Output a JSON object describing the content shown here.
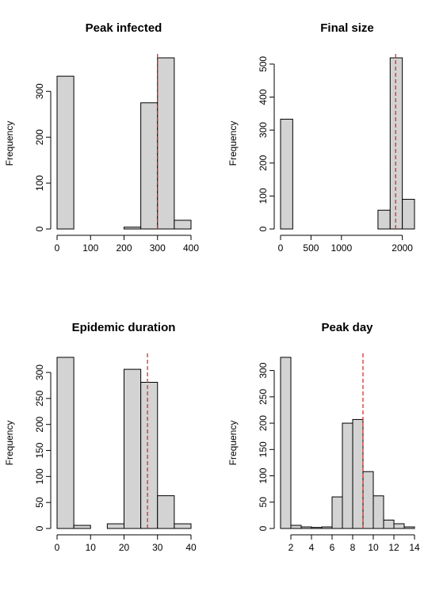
{
  "colors": {
    "bar_fill": "#d3d3d3",
    "bar_stroke": "#000000",
    "reference_line": "#d62020",
    "background": "#ffffff"
  },
  "chart_data": [
    {
      "type": "bar",
      "title": "Peak infected",
      "ylabel": "Frequency",
      "bins": [
        [
          0,
          50
        ],
        [
          50,
          100
        ],
        [
          100,
          150
        ],
        [
          150,
          200
        ],
        [
          200,
          250
        ],
        [
          250,
          300
        ],
        [
          300,
          350
        ],
        [
          350,
          400
        ]
      ],
      "values": [
        333,
        0,
        0,
        0,
        4,
        275,
        373,
        19
      ],
      "xlim": [
        0,
        400
      ],
      "ylim": [
        0,
        373
      ],
      "xticks": [
        0,
        100,
        200,
        300,
        400
      ],
      "xtick_labels": [
        "0",
        "100",
        "200",
        "300",
        "400"
      ],
      "yticks": [
        0,
        100,
        200,
        300
      ],
      "ytick_labels": [
        "0",
        "100",
        "200",
        "300"
      ],
      "reference_line_x": 300
    },
    {
      "type": "bar",
      "title": "Final size",
      "ylabel": "Frequency",
      "bins": [
        [
          0,
          200
        ],
        [
          200,
          400
        ],
        [
          400,
          600
        ],
        [
          600,
          800
        ],
        [
          800,
          1000
        ],
        [
          1000,
          1200
        ],
        [
          1200,
          1400
        ],
        [
          1400,
          1600
        ],
        [
          1600,
          1800
        ],
        [
          1800,
          2000
        ],
        [
          2000,
          2200
        ]
      ],
      "values": [
        333,
        0,
        0,
        0,
        0,
        0,
        0,
        0,
        57,
        519,
        90
      ],
      "xlim": [
        0,
        2200
      ],
      "ylim": [
        0,
        519
      ],
      "xticks": [
        0,
        500,
        1000,
        2000
      ],
      "xtick_labels": [
        "0",
        "500",
        "1000",
        "2000"
      ],
      "yticks": [
        0,
        100,
        200,
        300,
        400,
        500
      ],
      "ytick_labels": [
        "0",
        "100",
        "200",
        "300",
        "400",
        "500"
      ],
      "reference_line_x": 1890
    },
    {
      "type": "bar",
      "title": "Epidemic duration",
      "ylabel": "Frequency",
      "bins": [
        [
          0,
          5
        ],
        [
          5,
          10
        ],
        [
          10,
          15
        ],
        [
          15,
          20
        ],
        [
          20,
          25
        ],
        [
          25,
          30
        ],
        [
          30,
          35
        ],
        [
          35,
          40
        ]
      ],
      "values": [
        329,
        6,
        0,
        9,
        306,
        281,
        63,
        9
      ],
      "xlim": [
        0,
        40
      ],
      "ylim": [
        0,
        329
      ],
      "xticks": [
        0,
        10,
        20,
        30,
        40
      ],
      "xtick_labels": [
        "0",
        "10",
        "20",
        "30",
        "40"
      ],
      "yticks": [
        0,
        50,
        100,
        150,
        200,
        250,
        300
      ],
      "ytick_labels": [
        "0",
        "50",
        "100",
        "150",
        "200",
        "250",
        "300"
      ],
      "reference_line_x": 27
    },
    {
      "type": "bar",
      "title": "Peak day",
      "ylabel": "Frequency",
      "bins": [
        [
          1,
          2
        ],
        [
          2,
          3
        ],
        [
          3,
          4
        ],
        [
          4,
          5
        ],
        [
          5,
          6
        ],
        [
          6,
          7
        ],
        [
          7,
          8
        ],
        [
          8,
          9
        ],
        [
          9,
          10
        ],
        [
          10,
          11
        ],
        [
          11,
          12
        ],
        [
          12,
          13
        ],
        [
          13,
          14
        ]
      ],
      "values": [
        325,
        6,
        3,
        2,
        3,
        60,
        200,
        207,
        108,
        62,
        16,
        9,
        3
      ],
      "xlim": [
        1,
        14
      ],
      "ylim": [
        0,
        325
      ],
      "xticks": [
        2,
        4,
        6,
        8,
        10,
        12,
        14
      ],
      "xtick_labels": [
        "2",
        "4",
        "6",
        "8",
        "10",
        "12",
        "14"
      ],
      "yticks": [
        0,
        50,
        100,
        150,
        200,
        250,
        300
      ],
      "ytick_labels": [
        "0",
        "50",
        "100",
        "150",
        "200",
        "250",
        "300"
      ],
      "reference_line_x": 9
    }
  ]
}
